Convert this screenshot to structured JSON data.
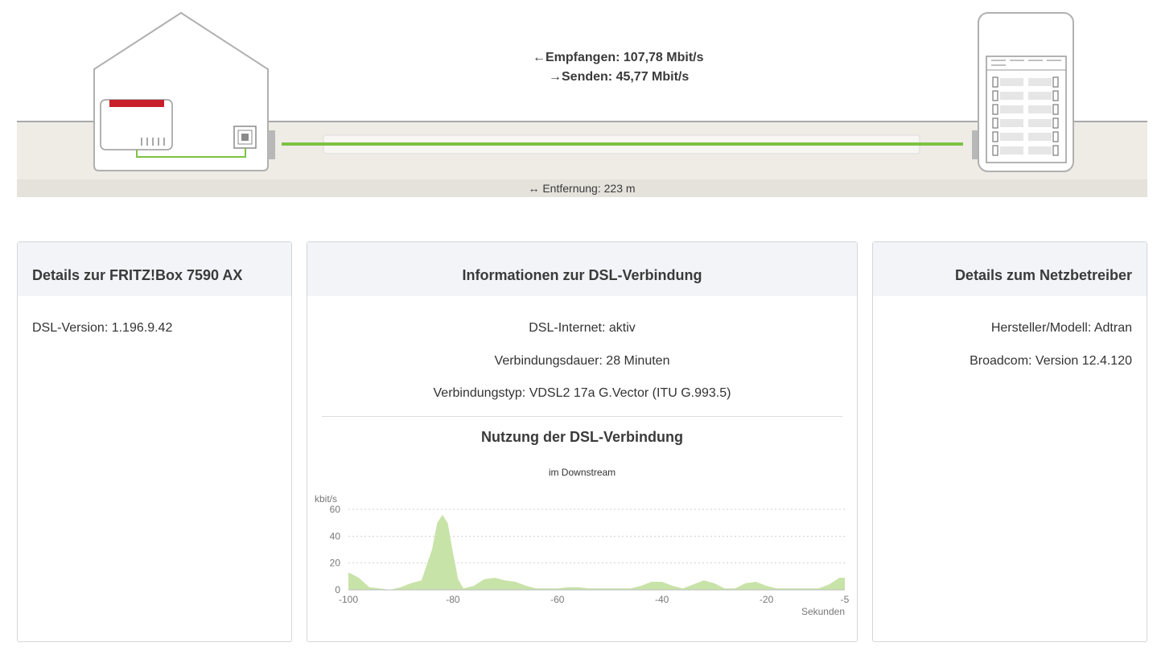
{
  "connection": {
    "receive_label": "Empfangen: 107,78 Mbit/s",
    "send_label": "Senden: 45,77 Mbit/s",
    "distance_label": "Entfernung: 223 m",
    "line_color": "#7dc242"
  },
  "panels": {
    "fritzbox": {
      "title": "Details zur FRITZ!Box 7590 AX",
      "dsl_version": "DSL-Version: 1.196.9.42"
    },
    "dsl_info": {
      "title": "Informationen zur DSL-Verbindung",
      "internet_status": "DSL-Internet: aktiv",
      "duration": "Verbindungsdauer: 28 Minuten",
      "type": "Verbindungstyp: VDSL2 17a G.Vector (ITU G.993.5)"
    },
    "provider": {
      "title": "Details zum Netzbetreiber",
      "manufacturer": "Hersteller/Modell: Adtran",
      "broadcom": "Broadcom: Version 12.4.120"
    }
  },
  "usage": {
    "title": "Nutzung der DSL-Verbindung",
    "subtitle": "im Downstream"
  },
  "chart_data": {
    "type": "area",
    "ylabel": "kbit/s",
    "xlabel": "Sekunden",
    "ylim": [
      0,
      60
    ],
    "xlim": [
      -100,
      -5
    ],
    "yticks": [
      0,
      20,
      40,
      60
    ],
    "xticks": [
      -100,
      -80,
      -60,
      -40,
      -20,
      -5
    ],
    "grid": true,
    "fill_color": "#c8e3a8",
    "x": [
      -100,
      -98,
      -96,
      -94,
      -92,
      -90,
      -88,
      -86,
      -84,
      -83,
      -82,
      -81,
      -80,
      -79,
      -78,
      -76,
      -74,
      -72,
      -70,
      -68,
      -66,
      -64,
      -62,
      -60,
      -58,
      -56,
      -54,
      -52,
      -50,
      -48,
      -46,
      -44,
      -42,
      -40,
      -38,
      -36,
      -34,
      -32,
      -30,
      -28,
      -26,
      -24,
      -22,
      -20,
      -18,
      -16,
      -14,
      -12,
      -10,
      -8,
      -6,
      -5
    ],
    "values": [
      13,
      9,
      2,
      1,
      0,
      2,
      5,
      7,
      30,
      50,
      56,
      50,
      28,
      8,
      1,
      3,
      8,
      9,
      7,
      6,
      3,
      1,
      1,
      1,
      2,
      2,
      1,
      1,
      1,
      1,
      1,
      3,
      6,
      6,
      3,
      1,
      4,
      7,
      5,
      1,
      1,
      5,
      6,
      3,
      1,
      1,
      1,
      1,
      1,
      4,
      9,
      9
    ]
  }
}
